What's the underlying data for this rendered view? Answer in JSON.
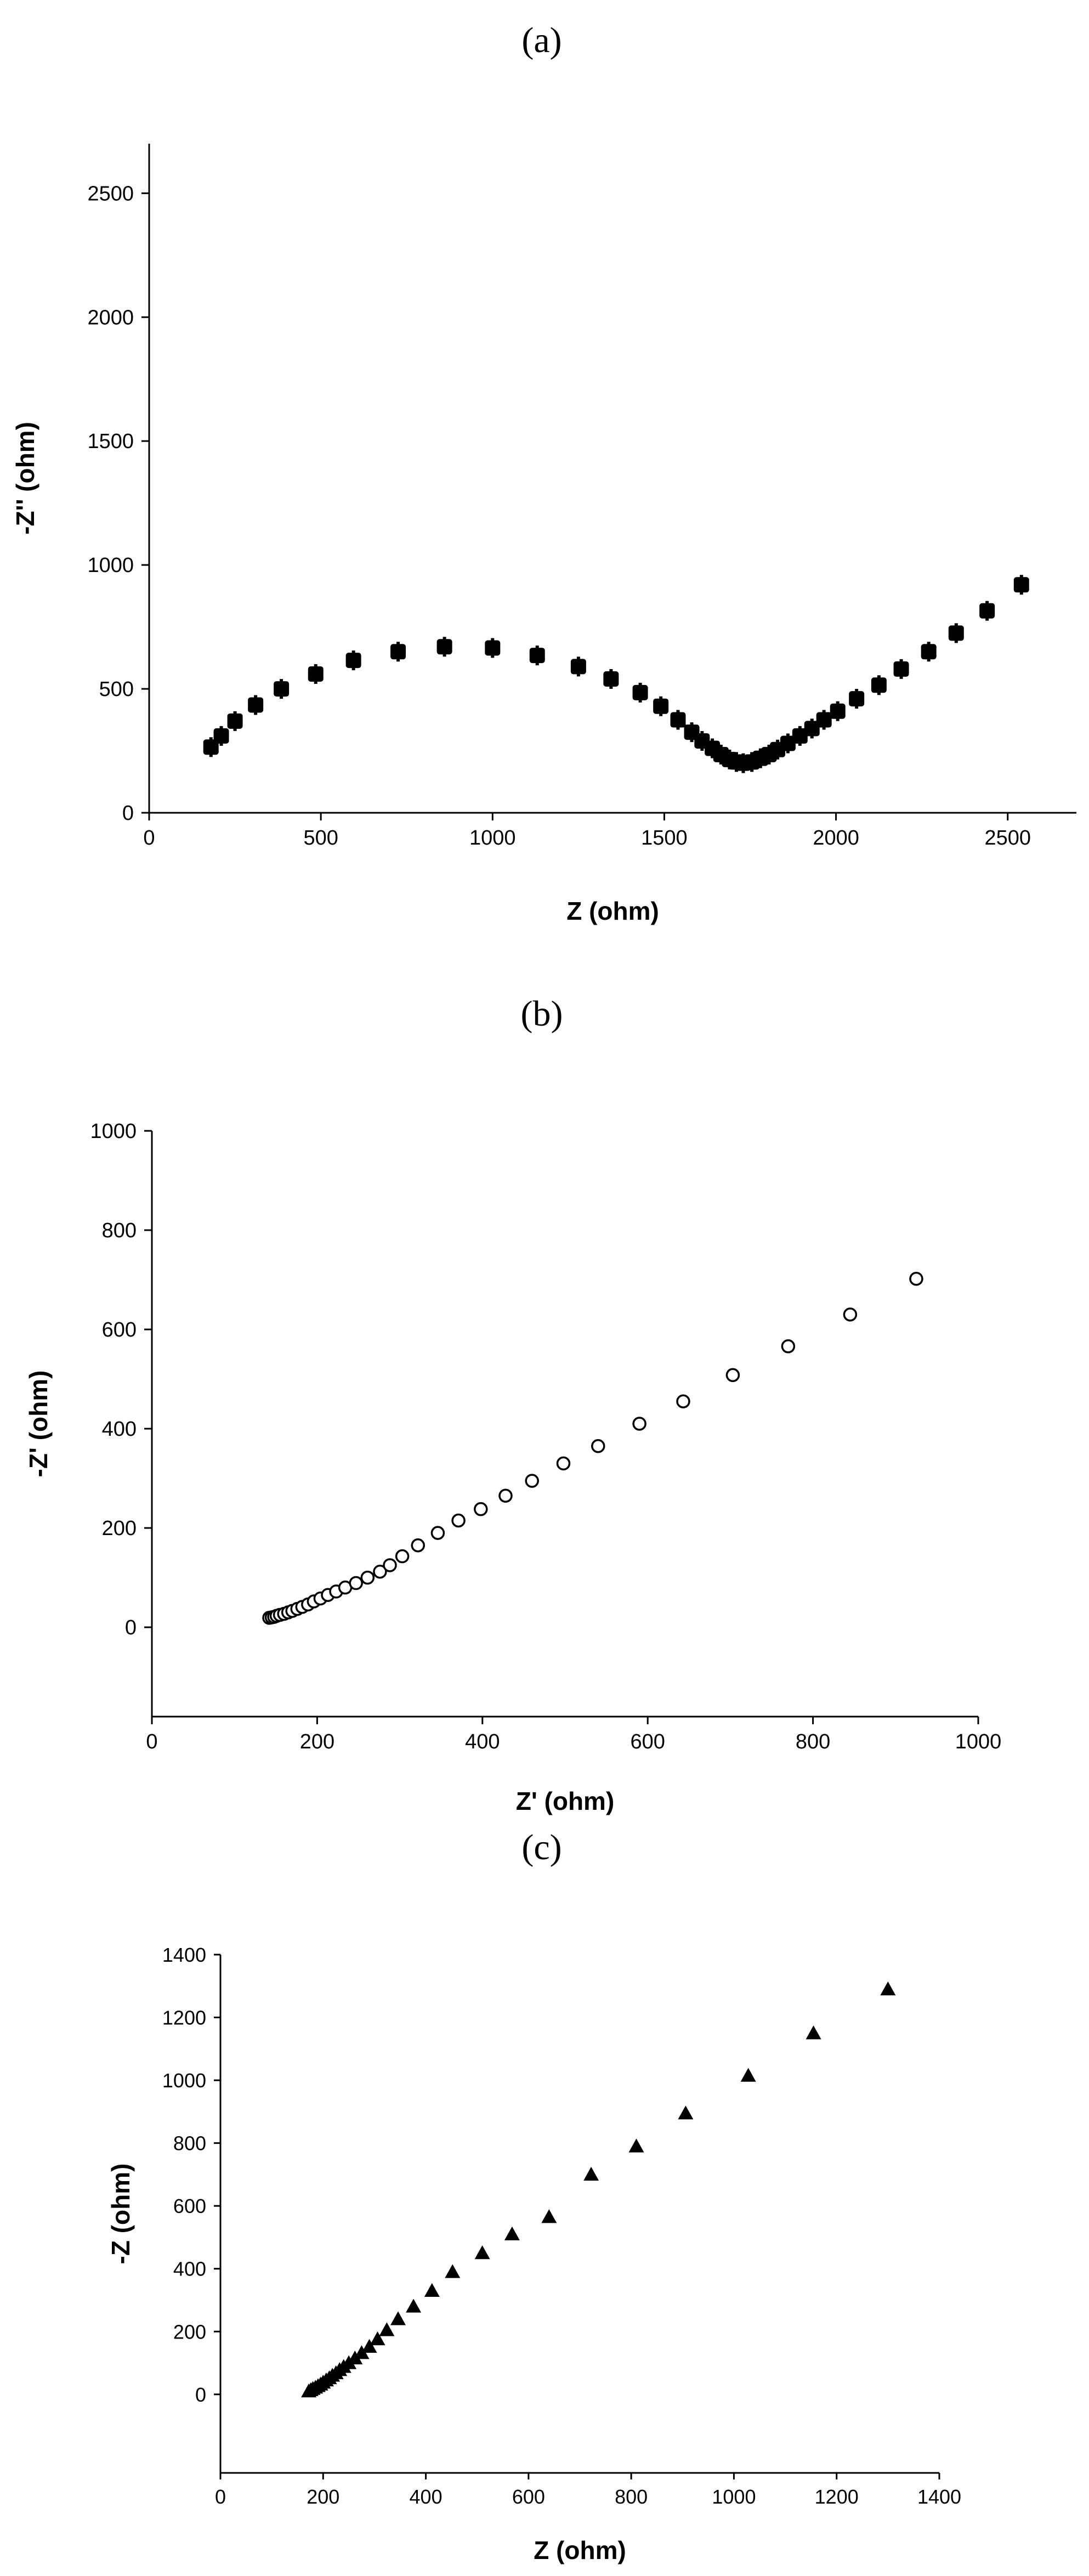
{
  "chart_data": [
    {
      "panel": "(a)",
      "type": "scatter",
      "xlabel": "Z (ohm)",
      "ylabel": "-Z'' (ohm)",
      "xlim": [
        0,
        2700
      ],
      "ylim": [
        0,
        2700
      ],
      "xticks": [
        0,
        500,
        1000,
        1500,
        2000,
        2500
      ],
      "yticks": [
        0,
        500,
        1000,
        1500,
        2000,
        2500
      ],
      "marker": "filled-square",
      "color": "#000000",
      "series": [
        {
          "x": [
            180,
            210,
            250,
            310,
            385,
            485,
            595,
            725,
            860,
            1000,
            1130,
            1250,
            1345,
            1430,
            1490,
            1540,
            1580,
            1610,
            1640,
            1665,
            1690,
            1710,
            1730,
            1755,
            1780,
            1805,
            1830,
            1860,
            1895,
            1930,
            1965,
            2005,
            2060,
            2125,
            2190,
            2270,
            2350,
            2440,
            2540
          ],
          "y": [
            265,
            310,
            370,
            435,
            500,
            560,
            615,
            650,
            670,
            665,
            635,
            590,
            540,
            485,
            430,
            375,
            325,
            290,
            260,
            235,
            215,
            205,
            200,
            205,
            220,
            235,
            255,
            280,
            310,
            340,
            375,
            410,
            460,
            515,
            580,
            650,
            725,
            815,
            920
          ]
        }
      ]
    },
    {
      "panel": "(b)",
      "type": "scatter",
      "xlabel": "Z' (ohm)",
      "ylabel": "-Z' (ohm)",
      "xlim": [
        0,
        1000
      ],
      "ylim": [
        -180,
        1000
      ],
      "xticks": [
        0,
        200,
        400,
        600,
        800,
        1000
      ],
      "yticks": [
        0,
        200,
        400,
        600,
        800,
        1000
      ],
      "marker": "open-circle",
      "color": "#000000",
      "series": [
        {
          "x": [
            142,
            145,
            148,
            151,
            155,
            160,
            165,
            170,
            176,
            182,
            189,
            196,
            204,
            213,
            223,
            234,
            247,
            261,
            276,
            288,
            303,
            322,
            346,
            371,
            398,
            428,
            460,
            498,
            540,
            590,
            643,
            703,
            770,
            845,
            925
          ],
          "y": [
            19,
            20,
            21,
            23,
            25,
            27,
            30,
            33,
            37,
            41,
            46,
            52,
            58,
            65,
            72,
            80,
            89,
            100,
            112,
            125,
            143,
            165,
            190,
            215,
            238,
            265,
            295,
            330,
            365,
            410,
            455,
            508,
            566,
            630,
            702
          ]
        }
      ]
    },
    {
      "panel": "(c)",
      "type": "scatter",
      "xlabel": "Z (ohm)",
      "ylabel": "-Z (ohm)",
      "xlim": [
        0,
        1400
      ],
      "ylim": [
        -250,
        1400
      ],
      "xticks": [
        0,
        200,
        400,
        600,
        800,
        1000,
        1200,
        1400
      ],
      "yticks": [
        0,
        200,
        400,
        600,
        800,
        1000,
        1200,
        1400
      ],
      "marker": "filled-triangle",
      "color": "#000000",
      "series": [
        {
          "x": [
            172,
            176,
            180,
            185,
            190,
            195,
            200,
            206,
            212,
            218,
            225,
            232,
            240,
            250,
            262,
            275,
            290,
            306,
            324,
            346,
            376,
            412,
            452,
            510,
            568,
            640,
            722,
            810,
            906,
            1028,
            1155,
            1300
          ],
          "y": [
            10,
            14,
            18,
            22,
            27,
            32,
            38,
            45,
            52,
            60,
            68,
            78,
            88,
            100,
            115,
            132,
            152,
            176,
            205,
            240,
            280,
            330,
            390,
            450,
            510,
            565,
            700,
            790,
            895,
            1015,
            1150,
            1290
          ]
        }
      ]
    }
  ]
}
